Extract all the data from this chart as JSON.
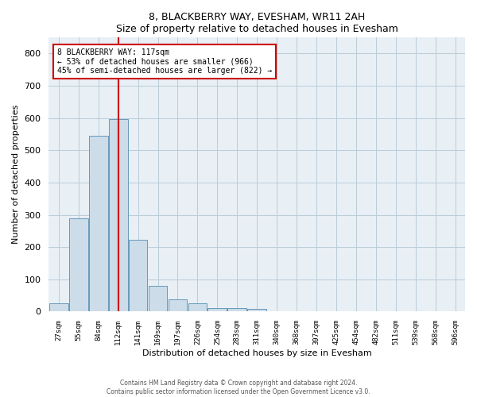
{
  "title": "8, BLACKBERRY WAY, EVESHAM, WR11 2AH",
  "subtitle": "Size of property relative to detached houses in Evesham",
  "xlabel": "Distribution of detached houses by size in Evesham",
  "ylabel": "Number of detached properties",
  "bar_labels": [
    "27sqm",
    "55sqm",
    "84sqm",
    "112sqm",
    "141sqm",
    "169sqm",
    "197sqm",
    "226sqm",
    "254sqm",
    "283sqm",
    "311sqm",
    "340sqm",
    "368sqm",
    "397sqm",
    "425sqm",
    "454sqm",
    "482sqm",
    "511sqm",
    "539sqm",
    "568sqm",
    "596sqm"
  ],
  "bar_heights": [
    25,
    290,
    545,
    597,
    222,
    80,
    37,
    26,
    12,
    10,
    8,
    0,
    0,
    0,
    0,
    0,
    0,
    0,
    0,
    0,
    0
  ],
  "bar_color": "#ccdce8",
  "bar_edge_color": "#6699bb",
  "vline_color": "#cc0000",
  "annotation_line1": "8 BLACKBERRY WAY: 117sqm",
  "annotation_line2": "← 53% of detached houses are smaller (966)",
  "annotation_line3": "45% of semi-detached houses are larger (822) →",
  "annotation_box_color": "#cc0000",
  "ylim": [
    0,
    850
  ],
  "yticks": [
    0,
    100,
    200,
    300,
    400,
    500,
    600,
    700,
    800
  ],
  "grid_color": "#bbccd8",
  "background_color": "#e8eff5",
  "footer_line1": "Contains HM Land Registry data © Crown copyright and database right 2024.",
  "footer_line2": "Contains public sector information licensed under the Open Government Licence v3.0."
}
